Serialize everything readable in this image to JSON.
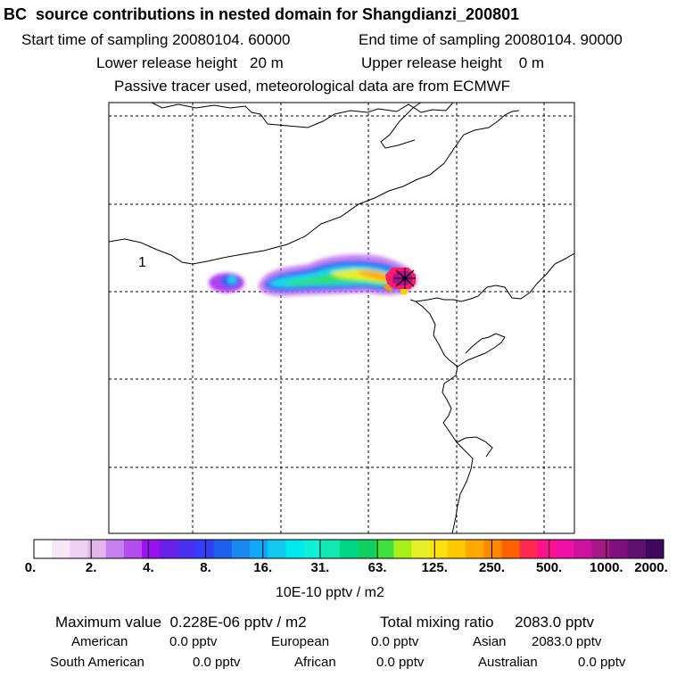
{
  "header": {
    "title": "BC  source contributions in nested domain for Shangdianzi_200801",
    "start_label": "Start time of sampling 20080104. 60000",
    "end_label": "End time of sampling 20080104. 90000",
    "lower_label": "Lower release height   20 m",
    "upper_label": "Upper release height    0 m",
    "tracer_label": "Passive tracer used, meteorological data are from ECMWF"
  },
  "map": {
    "region_marker": "1",
    "receptor": "Shangdianzi"
  },
  "colorbar": {
    "tick_labels": [
      "0.",
      "2.",
      "4.",
      "8.",
      "16.",
      "31.",
      "63.",
      "125.",
      "250.",
      "500.",
      "1000.",
      "2000."
    ],
    "unit_label": "10E-10 pptv / m2",
    "colors": [
      "#ffffff",
      "#f6e6f6",
      "#eed0f0",
      "#e2b6ec",
      "#c77ff0",
      "#b44cf0",
      "#9a10f2",
      "#6a20e8",
      "#4a30f0",
      "#3040f8",
      "#2060f0",
      "#1a88f2",
      "#10a8f8",
      "#10c8f0",
      "#00e8f0",
      "#10f0d8",
      "#10e8b0",
      "#00d888",
      "#10d060",
      "#40e040",
      "#a8f018",
      "#e8f028",
      "#ffe010",
      "#ffc800",
      "#ffa800",
      "#ff8800",
      "#ff6000",
      "#ff2850",
      "#ff1090",
      "#f010a8",
      "#d010a0",
      "#a81888",
      "#801080",
      "#601070",
      "#400860"
    ]
  },
  "footer": {
    "max_label": "Maximum value  0.228E-06 pptv / m2",
    "total_label": "Total mixing ratio     2083.0 pptv",
    "regions": [
      {
        "name": "American",
        "value": "0.0 pptv"
      },
      {
        "name": "European",
        "value": "0.0 pptv"
      },
      {
        "name": "Asian",
        "value": "2083.0 pptv"
      },
      {
        "name": "South American",
        "value": "0.0 pptv"
      },
      {
        "name": "African",
        "value": "0.0 pptv"
      },
      {
        "name": "Australian",
        "value": "0.0 pptv"
      }
    ]
  }
}
